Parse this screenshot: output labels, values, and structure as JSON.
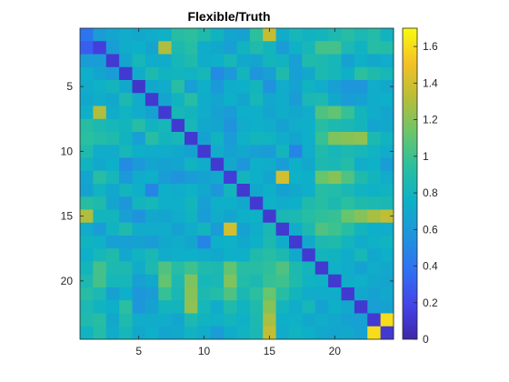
{
  "chart_data": {
    "type": "heatmap",
    "title": "Flexible/Truth",
    "xlabel": "",
    "ylabel": "",
    "size": 24,
    "xlim": [
      0.5,
      24.5
    ],
    "ylim": [
      0.5,
      24.5
    ],
    "x_ticks": [
      5,
      10,
      15,
      20
    ],
    "y_ticks": [
      5,
      10,
      15,
      20
    ],
    "colorbar": {
      "colormap": "parula",
      "range": [
        0,
        1.7
      ],
      "ticks": [
        0,
        0.2,
        0.4,
        0.6,
        0.8,
        1,
        1.2,
        1.4,
        1.6
      ],
      "tick_labels": [
        "0",
        "0.2",
        "0.4",
        "0.6",
        "0.8",
        "1",
        "1.2",
        "1.4",
        "1.6"
      ]
    },
    "colormap_stops": [
      "#3e26a8",
      "#4444e9",
      "#2f71f2",
      "#1f94dc",
      "#0db1c6",
      "#2abf9f",
      "#6cc56a",
      "#b8bd38",
      "#f4c125",
      "#f9fb0e"
    ],
    "matrix": [
      [
        0.4,
        0.62,
        0.68,
        0.72,
        0.7,
        0.72,
        0.76,
        0.92,
        0.95,
        0.88,
        0.78,
        0.68,
        0.66,
        0.95,
        1.35,
        0.72,
        0.82,
        0.78,
        0.8,
        0.86,
        0.92,
        0.85,
        0.9,
        0.78
      ],
      [
        0.3,
        0.15,
        0.62,
        0.72,
        0.74,
        0.68,
        1.3,
        0.86,
        0.92,
        0.72,
        0.7,
        0.64,
        0.78,
        0.88,
        0.8,
        0.62,
        0.76,
        0.82,
        1.02,
        1.02,
        0.85,
        0.78,
        0.92,
        0.9
      ],
      [
        0.62,
        0.62,
        0.12,
        0.68,
        0.82,
        0.72,
        0.72,
        0.82,
        0.88,
        0.72,
        0.74,
        0.82,
        0.7,
        0.68,
        0.8,
        0.78,
        0.64,
        0.88,
        0.86,
        0.82,
        0.66,
        0.74,
        0.7,
        0.72
      ],
      [
        0.74,
        0.68,
        0.62,
        0.12,
        0.72,
        0.86,
        0.78,
        0.8,
        0.78,
        0.82,
        0.52,
        0.6,
        0.8,
        0.58,
        0.64,
        0.88,
        0.64,
        0.7,
        0.86,
        0.82,
        0.74,
        0.94,
        0.88,
        0.82
      ],
      [
        0.72,
        0.76,
        0.8,
        0.7,
        0.1,
        0.7,
        0.72,
        0.92,
        0.64,
        0.74,
        0.6,
        0.72,
        0.74,
        0.8,
        0.56,
        0.72,
        0.66,
        0.78,
        0.72,
        0.64,
        0.58,
        0.58,
        0.72,
        0.7
      ],
      [
        0.7,
        0.72,
        0.7,
        0.86,
        0.72,
        0.12,
        0.68,
        0.78,
        0.92,
        0.72,
        0.68,
        0.74,
        0.68,
        0.82,
        0.7,
        0.72,
        0.62,
        0.84,
        0.86,
        0.7,
        0.62,
        0.66,
        0.72,
        0.74
      ],
      [
        0.74,
        1.3,
        0.72,
        0.78,
        0.72,
        0.66,
        0.12,
        0.82,
        0.8,
        0.72,
        0.66,
        0.62,
        0.74,
        0.74,
        0.68,
        0.72,
        0.7,
        0.72,
        1.05,
        1.1,
        0.98,
        0.8,
        0.72,
        0.68
      ],
      [
        0.92,
        0.86,
        0.82,
        0.8,
        0.92,
        0.78,
        0.82,
        0.12,
        0.82,
        0.7,
        0.68,
        0.56,
        0.72,
        0.74,
        0.72,
        0.66,
        0.72,
        0.74,
        0.92,
        0.86,
        0.84,
        0.8,
        0.68,
        0.7
      ],
      [
        0.94,
        0.9,
        0.88,
        0.78,
        0.64,
        0.92,
        0.8,
        0.82,
        0.12,
        0.66,
        0.78,
        0.62,
        0.76,
        0.8,
        0.78,
        0.72,
        0.68,
        0.74,
        0.98,
        1.18,
        1.2,
        1.22,
        0.86,
        0.78
      ],
      [
        0.88,
        0.72,
        0.72,
        0.82,
        0.74,
        0.72,
        0.72,
        0.7,
        0.66,
        0.12,
        0.72,
        0.66,
        0.7,
        0.64,
        0.62,
        0.8,
        0.48,
        0.72,
        0.88,
        0.82,
        0.86,
        0.82,
        0.78,
        0.72
      ],
      [
        0.78,
        0.7,
        0.74,
        0.52,
        0.6,
        0.68,
        0.66,
        0.68,
        0.78,
        0.72,
        0.12,
        0.7,
        0.58,
        0.74,
        0.72,
        0.62,
        0.74,
        0.7,
        0.86,
        0.84,
        0.9,
        0.72,
        0.76,
        0.62
      ],
      [
        0.68,
        0.92,
        0.82,
        0.6,
        0.72,
        0.74,
        0.62,
        0.56,
        0.62,
        0.66,
        0.7,
        0.14,
        0.8,
        0.74,
        0.68,
        1.4,
        0.76,
        0.74,
        1.12,
        1.2,
        1.05,
        0.88,
        0.8,
        0.72
      ],
      [
        0.66,
        0.78,
        0.7,
        0.8,
        0.74,
        0.48,
        0.74,
        0.72,
        0.76,
        0.7,
        0.58,
        0.8,
        0.12,
        0.7,
        0.74,
        0.66,
        0.7,
        0.74,
        0.92,
        0.9,
        0.84,
        0.78,
        0.76,
        0.78
      ],
      [
        0.92,
        0.88,
        0.68,
        0.58,
        0.8,
        0.82,
        0.74,
        0.74,
        0.8,
        0.64,
        0.74,
        0.74,
        0.7,
        0.12,
        0.76,
        0.72,
        0.74,
        0.88,
        0.92,
        0.86,
        0.94,
        0.88,
        0.86,
        0.84
      ],
      [
        1.3,
        0.8,
        0.8,
        0.64,
        0.56,
        0.7,
        0.68,
        0.72,
        0.78,
        0.62,
        0.72,
        0.68,
        0.74,
        0.76,
        0.12,
        0.84,
        0.86,
        0.92,
        0.96,
        0.98,
        1.12,
        1.2,
        1.28,
        1.35
      ],
      [
        0.72,
        0.62,
        0.78,
        0.88,
        0.72,
        0.72,
        0.72,
        0.66,
        0.72,
        0.8,
        0.62,
        1.4,
        0.66,
        0.72,
        0.84,
        0.12,
        0.72,
        0.86,
        1.05,
        1.0,
        0.92,
        0.8,
        0.74,
        0.72
      ],
      [
        0.78,
        0.76,
        0.64,
        0.64,
        0.66,
        0.62,
        0.7,
        0.72,
        0.68,
        0.48,
        0.74,
        0.76,
        0.7,
        0.74,
        0.86,
        0.72,
        0.12,
        0.7,
        0.86,
        0.88,
        0.8,
        0.72,
        0.76,
        0.78
      ],
      [
        0.74,
        0.82,
        0.88,
        0.7,
        0.78,
        0.84,
        0.72,
        0.74,
        0.74,
        0.72,
        0.7,
        0.74,
        0.74,
        0.88,
        0.92,
        0.86,
        0.7,
        0.12,
        0.8,
        0.78,
        0.72,
        0.82,
        0.7,
        0.74
      ],
      [
        0.8,
        1.02,
        0.86,
        0.86,
        0.72,
        0.86,
        1.05,
        0.92,
        1.0,
        0.88,
        0.86,
        1.1,
        0.92,
        0.92,
        0.96,
        1.05,
        0.86,
        0.8,
        0.12,
        0.76,
        0.72,
        0.66,
        0.72,
        0.7
      ],
      [
        0.86,
        1.02,
        0.82,
        0.82,
        0.64,
        0.7,
        1.1,
        0.86,
        1.18,
        0.82,
        0.84,
        1.18,
        0.9,
        0.86,
        0.98,
        1.0,
        0.88,
        0.78,
        0.76,
        0.12,
        0.72,
        0.74,
        0.7,
        0.68
      ],
      [
        0.92,
        0.85,
        0.66,
        0.74,
        0.58,
        0.62,
        0.98,
        0.84,
        1.2,
        0.86,
        0.9,
        1.05,
        0.84,
        0.94,
        1.12,
        0.92,
        0.8,
        0.72,
        0.72,
        0.72,
        0.12,
        0.7,
        0.66,
        0.7
      ],
      [
        0.85,
        0.78,
        0.74,
        0.94,
        0.58,
        0.66,
        0.8,
        0.8,
        1.22,
        0.82,
        0.72,
        0.88,
        0.78,
        0.88,
        1.2,
        0.8,
        0.72,
        0.82,
        0.66,
        0.74,
        0.7,
        0.12,
        0.64,
        0.66
      ],
      [
        0.88,
        0.92,
        0.7,
        0.88,
        0.72,
        0.72,
        0.72,
        0.68,
        0.86,
        0.78,
        0.76,
        0.8,
        0.76,
        0.86,
        1.28,
        0.74,
        0.76,
        0.7,
        0.72,
        0.7,
        0.66,
        0.64,
        0.12,
        1.6
      ],
      [
        0.78,
        0.9,
        0.72,
        0.82,
        0.7,
        0.74,
        0.68,
        0.7,
        0.78,
        0.72,
        0.62,
        0.72,
        0.78,
        0.84,
        1.35,
        0.72,
        0.78,
        0.74,
        0.7,
        0.68,
        0.7,
        0.66,
        1.6,
        0.12
      ]
    ]
  }
}
